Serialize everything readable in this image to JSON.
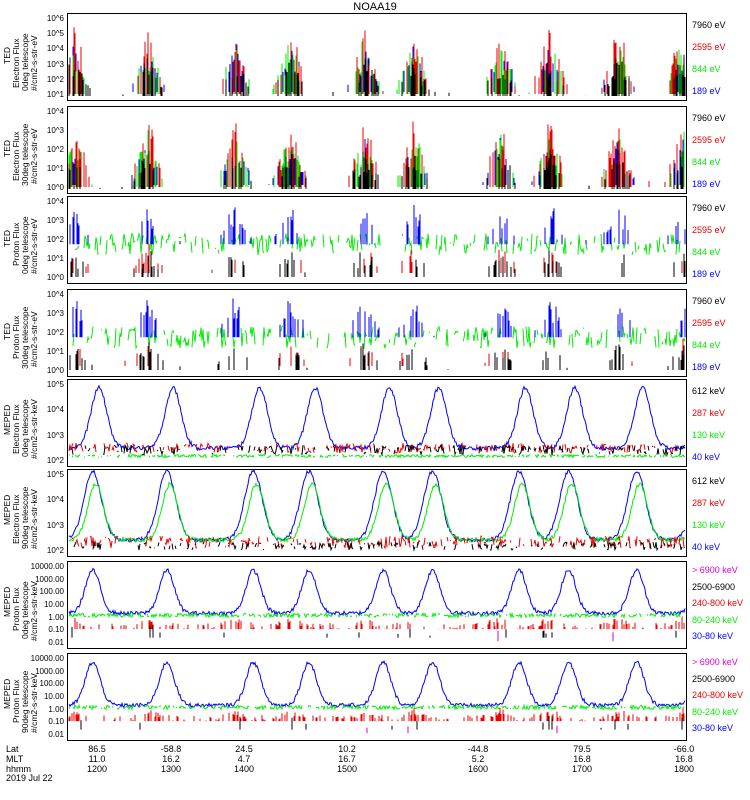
{
  "title": "NOAA19",
  "date": "2019 Jul 22",
  "colors": {
    "black": "#000000",
    "red": "#ee0000",
    "green": "#00ee00",
    "blue": "#0000ff",
    "magenta": "#dd00dd"
  },
  "chart_data": [
    {
      "type": "line",
      "ylabel": [
        "TED",
        "Electron Flux",
        "0deg telescope",
        "#/cm2-s-str-eV"
      ],
      "yscale": "log",
      "yticks": [
        "10^1",
        "10^2",
        "10^3",
        "10^4",
        "10^5",
        "10^6"
      ],
      "legend": [
        {
          "label": "7960 eV",
          "color": "#000000"
        },
        {
          "label": "2595 eV",
          "color": "#ee0000"
        },
        {
          "label": "844 eV",
          "color": "#00ee00"
        },
        {
          "label": "189 eV",
          "color": "#0000ff"
        }
      ],
      "style": "ted_e"
    },
    {
      "type": "line",
      "ylabel": [
        "TED",
        "Electron Flux",
        "30deg telescope",
        "#/cm2-s-str-eV"
      ],
      "yscale": "log",
      "yticks": [
        "10^0",
        "10^1",
        "10^2",
        "10^3",
        "10^4"
      ],
      "legend": [
        {
          "label": "7960 eV",
          "color": "#000000"
        },
        {
          "label": "2595 eV",
          "color": "#ee0000"
        },
        {
          "label": "844 eV",
          "color": "#00ee00"
        },
        {
          "label": "189 eV",
          "color": "#0000ff"
        }
      ],
      "style": "ted_e"
    },
    {
      "type": "line",
      "ylabel": [
        "TED",
        "Proton Flux",
        "0deg telescope",
        "#/cm2-s-str-eV"
      ],
      "yscale": "log",
      "yticks": [
        "10^0",
        "10^1",
        "10^2",
        "10^3",
        "10^4"
      ],
      "legend": [
        {
          "label": "7960 eV",
          "color": "#000000"
        },
        {
          "label": "2595 eV",
          "color": "#ee0000"
        },
        {
          "label": "844 eV",
          "color": "#00ee00"
        },
        {
          "label": "189 eV",
          "color": "#0000ff"
        }
      ],
      "style": "ted_p"
    },
    {
      "type": "line",
      "ylabel": [
        "TED",
        "Proton Flux",
        "30deg telescope",
        "#/cm2-s-str-eV"
      ],
      "yscale": "log",
      "yticks": [
        "10^0",
        "10^1",
        "10^2",
        "10^3",
        "10^4"
      ],
      "legend": [
        {
          "label": "7960 eV",
          "color": "#000000"
        },
        {
          "label": "2595 eV",
          "color": "#ee0000"
        },
        {
          "label": "844 eV",
          "color": "#00ee00"
        },
        {
          "label": "189 eV",
          "color": "#0000ff"
        }
      ],
      "style": "ted_p"
    },
    {
      "type": "line",
      "ylabel": [
        "MEPED",
        "Electron Flux",
        "0deg telescope",
        "#/cm2-s-str-keV"
      ],
      "yscale": "log",
      "yticks": [
        "10^2",
        "10^3",
        "10^4",
        "10^5"
      ],
      "legend": [
        {
          "label": "612 keV",
          "color": "#000000"
        },
        {
          "label": "287 keV",
          "color": "#ee0000"
        },
        {
          "label": "130 keV",
          "color": "#00ee00"
        },
        {
          "label": "40 keV",
          "color": "#0000ff"
        }
      ],
      "style": "meped0"
    },
    {
      "type": "line",
      "ylabel": [
        "MEPED",
        "Electron Flux",
        "90deg telescope",
        "#/cm2-s-str-keV"
      ],
      "yscale": "log",
      "yticks": [
        "10^2",
        "10^3",
        "10^4",
        "10^5"
      ],
      "legend": [
        {
          "label": "612 keV",
          "color": "#000000"
        },
        {
          "label": "287 keV",
          "color": "#ee0000"
        },
        {
          "label": "130 keV",
          "color": "#00ee00"
        },
        {
          "label": "40 keV",
          "color": "#0000ff"
        }
      ],
      "style": "meped90"
    },
    {
      "type": "line",
      "ylabel": [
        "MEPED",
        "Proton Flux",
        "0deg telescope",
        "#/cm2-s-str-keV"
      ],
      "yscale": "log",
      "yticks": [
        "0.01",
        "0.10",
        "1.00",
        "10.00",
        "100.00",
        "1000.00",
        "10000.00"
      ],
      "legend": [
        {
          "label": "> 6900 keV",
          "color": "#dd00dd"
        },
        {
          "label": "2500-6900",
          "color": "#000000"
        },
        {
          "label": "240-800 keV",
          "color": "#ee0000"
        },
        {
          "label": "80-240 keV",
          "color": "#00ee00"
        },
        {
          "label": "30-80 keV",
          "color": "#0000ff"
        }
      ],
      "style": "mepedp0"
    },
    {
      "type": "line",
      "ylabel": [
        "MEPED",
        "Proton Flux",
        "90deg telescope",
        "#/cm2-s-str-keV"
      ],
      "yscale": "log",
      "yticks": [
        "0.01",
        "0.10",
        "1.00",
        "10.00",
        "100.00",
        "1000.00",
        "10000.00"
      ],
      "legend": [
        {
          "label": "> 6900 keV",
          "color": "#dd00dd"
        },
        {
          "label": "2500-6900",
          "color": "#000000"
        },
        {
          "label": "240-800 keV",
          "color": "#ee0000"
        },
        {
          "label": "80-240 keV",
          "color": "#00ee00"
        },
        {
          "label": "30-80 keV",
          "color": "#0000ff"
        }
      ],
      "style": "mepedp90"
    }
  ],
  "xaxis": {
    "labels": [
      "Lat",
      "MLT",
      "hhmm"
    ],
    "columns": [
      {
        "lat": "86.5",
        "mlt": "11.0",
        "hhmm": "1200"
      },
      {
        "lat": "-58.8",
        "mlt": "16.2",
        "hhmm": "1300"
      },
      {
        "lat": "24.5",
        "mlt": "4.7",
        "hhmm": "1400"
      },
      {
        "lat": "10.2",
        "mlt": "16.7",
        "hhmm": "1500"
      },
      {
        "lat": "-44.8",
        "mlt": "5.2",
        "hhmm": "1600"
      },
      {
        "lat": "79.5",
        "mlt": "16.8",
        "hhmm": "1700"
      },
      {
        "lat": "-66.0",
        "mlt": "16.8",
        "hhmm": "1800"
      }
    ]
  }
}
